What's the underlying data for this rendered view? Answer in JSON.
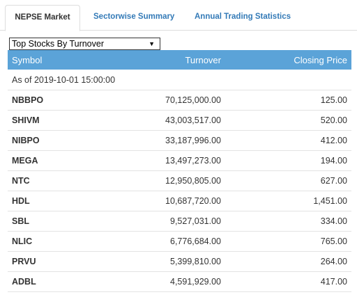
{
  "tabs": [
    {
      "label": "NEPSE Market",
      "active": true
    },
    {
      "label": "Sectorwise Summary",
      "active": false
    },
    {
      "label": "Annual Trading Statistics",
      "active": false
    }
  ],
  "selector": {
    "value": "Top Stocks By Turnover",
    "arrow": "▼"
  },
  "table": {
    "headers": {
      "symbol": "Symbol",
      "turnover": "Turnover",
      "closing": "Closing Price"
    },
    "as_of": "As of 2019-10-01 15:00:00",
    "rows": [
      {
        "symbol": "NBBPO",
        "turnover": "70,125,000.00",
        "closing": "125.00"
      },
      {
        "symbol": "SHIVM",
        "turnover": "43,003,517.00",
        "closing": "520.00"
      },
      {
        "symbol": "NIBPO",
        "turnover": "33,187,996.00",
        "closing": "412.00"
      },
      {
        "symbol": "MEGA",
        "turnover": "13,497,273.00",
        "closing": "194.00"
      },
      {
        "symbol": "NTC",
        "turnover": "12,950,805.00",
        "closing": "627.00"
      },
      {
        "symbol": "HDL",
        "turnover": "10,687,720.00",
        "closing": "1,451.00"
      },
      {
        "symbol": "SBL",
        "turnover": "9,527,031.00",
        "closing": "334.00"
      },
      {
        "symbol": "NLIC",
        "turnover": "6,776,684.00",
        "closing": "765.00"
      },
      {
        "symbol": "PRVU",
        "turnover": "5,399,810.00",
        "closing": "264.00"
      },
      {
        "symbol": "ADBL",
        "turnover": "4,591,929.00",
        "closing": "417.00"
      }
    ]
  }
}
